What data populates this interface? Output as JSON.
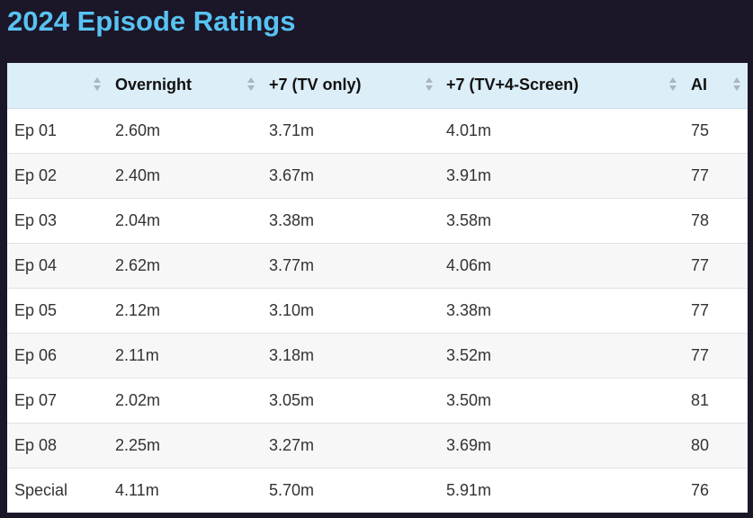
{
  "title": "2024 Episode Ratings",
  "table": {
    "headers": [
      "",
      "Overnight",
      "+7 (TV only)",
      "+7 (TV+4-Screen)",
      "AI"
    ],
    "rows": [
      [
        "Ep 01",
        "2.60m",
        "3.71m",
        "4.01m",
        "75"
      ],
      [
        "Ep 02",
        "2.40m",
        "3.67m",
        "3.91m",
        "77"
      ],
      [
        "Ep 03",
        "2.04m",
        "3.38m",
        "3.58m",
        "78"
      ],
      [
        "Ep 04",
        "2.62m",
        "3.77m",
        "4.06m",
        "77"
      ],
      [
        "Ep 05",
        "2.12m",
        "3.10m",
        "3.38m",
        "77"
      ],
      [
        "Ep 06",
        "2.11m",
        "3.18m",
        "3.52m",
        "77"
      ],
      [
        "Ep 07",
        "2.02m",
        "3.05m",
        "3.50m",
        "81"
      ],
      [
        "Ep 08",
        "2.25m",
        "3.27m",
        "3.69m",
        "80"
      ],
      [
        "Special",
        "4.11m",
        "5.70m",
        "5.91m",
        "76"
      ]
    ]
  },
  "colors": {
    "background": "#1c1629",
    "title": "#58c3f2",
    "header_bg": "#dceef7",
    "row_alt": "#f7f7f7",
    "sort_icon": "#a9b6bf"
  },
  "icons": {
    "sort": "sort-arrows-icon"
  }
}
